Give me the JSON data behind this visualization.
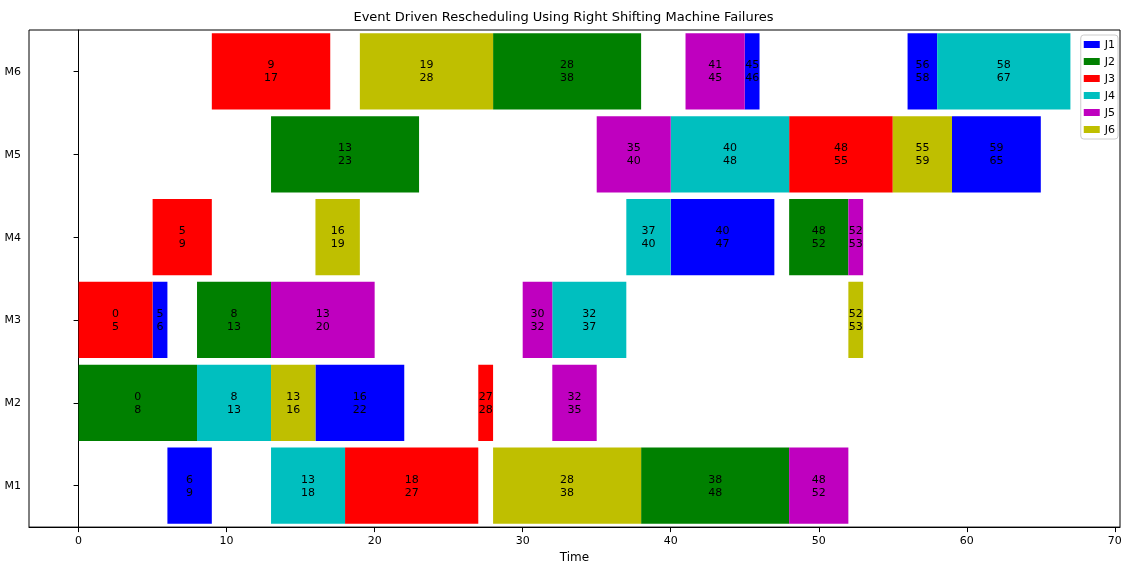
{
  "chart_data": {
    "type": "bar",
    "orientation": "horizontal",
    "title": "Event Driven Rescheduling Using Right Shifting Machine Failures",
    "xlabel": "Time",
    "categories": [
      "M6",
      "M5",
      "M4",
      "M3",
      "M2",
      "M1"
    ],
    "xlim": [
      -3.35,
      70.35
    ],
    "xticks": [
      0,
      10,
      20,
      30,
      40,
      50,
      60,
      70
    ],
    "legend": "top right",
    "series": [
      {
        "name": "J1",
        "color": "#0000ff",
        "base": [
          45,
          59,
          40,
          5,
          16,
          6
        ],
        "values": [
          1,
          6,
          7,
          1,
          6,
          3
        ]
      },
      {
        "color": "#0000ff",
        "base": [
          56,
          null,
          null,
          null,
          null,
          null
        ],
        "values": [
          2,
          null,
          null,
          null,
          null,
          null
        ]
      },
      {
        "name": "J2",
        "color": "#008000",
        "base": [
          28,
          13,
          48,
          8,
          0,
          38
        ],
        "values": [
          10,
          10,
          4,
          5,
          8,
          10
        ]
      },
      {
        "name": "J3",
        "color": "#ff0000",
        "base": [
          9,
          48,
          5,
          0,
          27,
          18
        ],
        "values": [
          8,
          7,
          4,
          5,
          1,
          9
        ]
      },
      {
        "name": "J4",
        "color": "#00bfbf",
        "base": [
          58,
          40,
          37,
          32,
          8,
          13
        ],
        "values": [
          9,
          8,
          3,
          5,
          5,
          5
        ]
      },
      {
        "name": "J5",
        "color": "#bf00bf",
        "base": [
          41,
          35,
          52,
          13,
          32,
          48
        ],
        "values": [
          4,
          5,
          1,
          7,
          3,
          4
        ]
      },
      {
        "color": "#bf00bf",
        "base": [
          null,
          null,
          null,
          30,
          null,
          null
        ],
        "values": [
          null,
          null,
          null,
          2,
          null,
          null
        ]
      },
      {
        "name": "J6",
        "color": "#bfbf00",
        "base": [
          19,
          55,
          16,
          52,
          13,
          28
        ],
        "values": [
          9,
          4,
          3,
          1,
          3,
          10
        ]
      }
    ],
    "annotations": [
      {
        "text": "9\n17",
        "x": 13,
        "y": "M6"
      },
      {
        "text": "19\n28",
        "x": 23.5,
        "y": "M6"
      },
      {
        "text": "28\n38",
        "x": 33,
        "y": "M6"
      },
      {
        "text": "41\n45",
        "x": 43,
        "y": "M6"
      },
      {
        "text": "45\n46",
        "x": 45.5,
        "y": "M6"
      },
      {
        "text": "56\n58",
        "x": 57,
        "y": "M6"
      },
      {
        "text": "58\n67",
        "x": 62.5,
        "y": "M6"
      },
      {
        "text": "13\n23",
        "x": 18,
        "y": "M5"
      },
      {
        "text": "35\n40",
        "x": 37.5,
        "y": "M5"
      },
      {
        "text": "40\n48",
        "x": 44,
        "y": "M5"
      },
      {
        "text": "48\n55",
        "x": 51.5,
        "y": "M5"
      },
      {
        "text": "55\n59",
        "x": 57,
        "y": "M5"
      },
      {
        "text": "59\n65",
        "x": 62,
        "y": "M5"
      },
      {
        "text": "5\n9",
        "x": 7,
        "y": "M4"
      },
      {
        "text": "16\n19",
        "x": 17.5,
        "y": "M4"
      },
      {
        "text": "37\n40",
        "x": 38.5,
        "y": "M4"
      },
      {
        "text": "40\n47",
        "x": 43.5,
        "y": "M4"
      },
      {
        "text": "48\n52",
        "x": 50,
        "y": "M4"
      },
      {
        "text": "52\n53",
        "x": 52.5,
        "y": "M4"
      },
      {
        "text": "0\n5",
        "x": 2.5,
        "y": "M3"
      },
      {
        "text": "5\n6",
        "x": 5.5,
        "y": "M3"
      },
      {
        "text": "8\n13",
        "x": 10.5,
        "y": "M3"
      },
      {
        "text": "13\n20",
        "x": 16.5,
        "y": "M3"
      },
      {
        "text": "30\n32",
        "x": 31,
        "y": "M3"
      },
      {
        "text": "32\n37",
        "x": 34.5,
        "y": "M3"
      },
      {
        "text": "52\n53",
        "x": 52.5,
        "y": "M3"
      },
      {
        "text": "0\n8",
        "x": 4,
        "y": "M2"
      },
      {
        "text": "8\n13",
        "x": 10.5,
        "y": "M2"
      },
      {
        "text": "13\n16",
        "x": 14.5,
        "y": "M2"
      },
      {
        "text": "16\n22",
        "x": 19,
        "y": "M2"
      },
      {
        "text": "27\n28",
        "x": 27.5,
        "y": "M2"
      },
      {
        "text": "32\n35",
        "x": 33.5,
        "y": "M2"
      },
      {
        "text": "6\n9",
        "x": 7.5,
        "y": "M1"
      },
      {
        "text": "13\n18",
        "x": 15.5,
        "y": "M1"
      },
      {
        "text": "18\n27",
        "x": 22.5,
        "y": "M1"
      },
      {
        "text": "28\n38",
        "x": 33,
        "y": "M1"
      },
      {
        "text": "38\n48",
        "x": 43,
        "y": "M1"
      },
      {
        "text": "48\n52",
        "x": 50,
        "y": "M1"
      }
    ]
  }
}
